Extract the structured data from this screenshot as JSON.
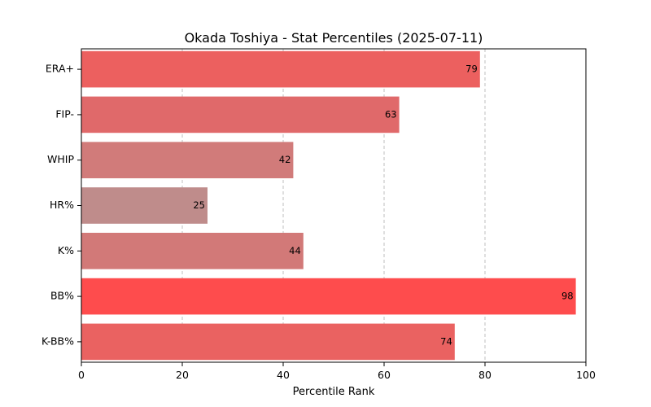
{
  "chart_data": {
    "type": "bar",
    "orientation": "horizontal",
    "title": "Okada Toshiya - Stat Percentiles (2025-07-11)",
    "xlabel": "Percentile Rank",
    "ylabel": "",
    "xlim": [
      0,
      100
    ],
    "xticks": [
      0,
      20,
      40,
      60,
      80,
      100
    ],
    "grid": "x-dashed",
    "categories": [
      "ERA+",
      "FIP-",
      "WHIP",
      "HR%",
      "K%",
      "BB%",
      "K-BB%"
    ],
    "values": [
      79,
      63,
      42,
      25,
      44,
      98,
      74
    ],
    "colors": [
      "#ec605f",
      "#e0696a",
      "#d17b7a",
      "#bf8c8b",
      "#d27978",
      "#fe4c4d",
      "#ea6261"
    ]
  }
}
